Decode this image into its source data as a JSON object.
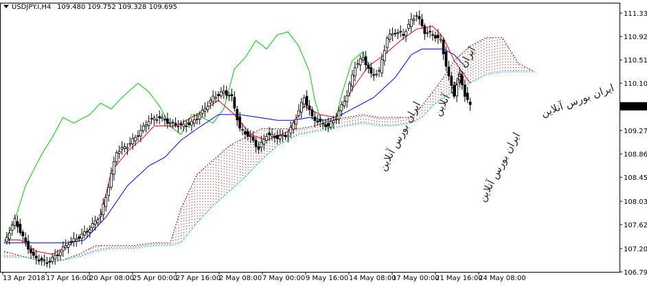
{
  "chart_title": {
    "symbol": "USDJPY.I,H4",
    "ohlc": "109.480 109.752 109.328 109.695"
  },
  "colors": {
    "background": "#ffffff",
    "axis": "#000000",
    "candle_bull": "#ffffff",
    "candle_bear": "#000000",
    "tenkan": "#ff0000",
    "kijun": "#0000ff",
    "chikou": "#00cc00",
    "senkou_a": "#8b0000",
    "senkou_b": "#00bfff",
    "current_price_bg": "#000000",
    "current_price_fg": "#ffffff"
  },
  "chart_data": {
    "type": "candlestick",
    "indicator": "ichimoku",
    "ylim": [
      106.79,
      111.5
    ],
    "y_ticks": [
      "111.330",
      "110.920",
      "110.510",
      "110.100",
      "109.695",
      "109.270",
      "108.860",
      "108.450",
      "108.030",
      "107.620",
      "107.200",
      "106.790"
    ],
    "current_price": "109.695",
    "x_ticks": [
      "13 Apr 2018",
      "17 Apr 16:00",
      "20 Apr 08:00",
      "25 Apr 00:00",
      "27 Apr 16:00",
      "2 May 08:00",
      "7 May 00:00",
      "9 May 16:00",
      "14 May 08:00",
      "17 May 00:00",
      "21 May 16:00",
      "24 May 08:00"
    ],
    "watermarks": [
      "ایران بورس آنلاین",
      "ایران بورس آنلاین",
      "ایران بورس آنلاین",
      "ایران بورس آنلاین"
    ],
    "price_anchors": [
      [
        0,
        107.3
      ],
      [
        4,
        107.7
      ],
      [
        8,
        107.3
      ],
      [
        11,
        107.05
      ],
      [
        16,
        106.95
      ],
      [
        20,
        107.1
      ],
      [
        24,
        107.3
      ],
      [
        28,
        107.4
      ],
      [
        32,
        107.55
      ],
      [
        36,
        107.8
      ],
      [
        38,
        108.1
      ],
      [
        42,
        108.9
      ],
      [
        46,
        109.0
      ],
      [
        50,
        109.2
      ],
      [
        54,
        109.45
      ],
      [
        58,
        109.5
      ],
      [
        62,
        109.4
      ],
      [
        66,
        109.35
      ],
      [
        70,
        109.4
      ],
      [
        74,
        109.6
      ],
      [
        78,
        109.85
      ],
      [
        82,
        109.95
      ],
      [
        85,
        109.85
      ],
      [
        88,
        109.3
      ],
      [
        92,
        109.15
      ],
      [
        95,
        108.95
      ],
      [
        98,
        109.2
      ],
      [
        102,
        109.15
      ],
      [
        106,
        109.2
      ],
      [
        109,
        109.5
      ],
      [
        112,
        109.85
      ],
      [
        115,
        109.5
      ],
      [
        118,
        109.4
      ],
      [
        121,
        109.35
      ],
      [
        124,
        109.5
      ],
      [
        128,
        109.9
      ],
      [
        131,
        110.4
      ],
      [
        134,
        110.55
      ],
      [
        137,
        110.25
      ],
      [
        140,
        110.3
      ],
      [
        143,
        110.9
      ],
      [
        146,
        111.0
      ],
      [
        149,
        110.95
      ],
      [
        152,
        111.2
      ],
      [
        154,
        111.3
      ],
      [
        157,
        111.0
      ],
      [
        160,
        110.95
      ],
      [
        163,
        110.85
      ],
      [
        166,
        110.2
      ],
      [
        168,
        109.9
      ],
      [
        170,
        110.25
      ],
      [
        172,
        109.9
      ],
      [
        174,
        109.7
      ]
    ],
    "tenkan_anchors": [
      [
        0,
        107.35
      ],
      [
        6,
        107.35
      ],
      [
        12,
        107.15
      ],
      [
        18,
        107.1
      ],
      [
        24,
        107.25
      ],
      [
        30,
        107.45
      ],
      [
        36,
        107.75
      ],
      [
        40,
        108.55
      ],
      [
        46,
        108.9
      ],
      [
        52,
        109.15
      ],
      [
        56,
        109.35
      ],
      [
        64,
        109.35
      ],
      [
        72,
        109.55
      ],
      [
        80,
        109.8
      ],
      [
        86,
        109.55
      ],
      [
        92,
        109.2
      ],
      [
        98,
        109.1
      ],
      [
        106,
        109.25
      ],
      [
        112,
        109.7
      ],
      [
        118,
        109.55
      ],
      [
        124,
        109.5
      ],
      [
        130,
        110.0
      ],
      [
        136,
        110.4
      ],
      [
        142,
        110.6
      ],
      [
        148,
        110.85
      ],
      [
        154,
        111.05
      ],
      [
        160,
        111.1
      ],
      [
        164,
        110.9
      ],
      [
        168,
        110.5
      ],
      [
        174,
        110.1
      ]
    ],
    "kijun_anchors": [
      [
        0,
        107.3
      ],
      [
        12,
        107.3
      ],
      [
        24,
        107.3
      ],
      [
        30,
        107.35
      ],
      [
        38,
        107.75
      ],
      [
        46,
        108.3
      ],
      [
        54,
        108.65
      ],
      [
        60,
        108.8
      ],
      [
        66,
        109.1
      ],
      [
        72,
        109.3
      ],
      [
        80,
        109.55
      ],
      [
        88,
        109.55
      ],
      [
        102,
        109.45
      ],
      [
        108,
        109.45
      ],
      [
        114,
        109.5
      ],
      [
        120,
        109.45
      ],
      [
        126,
        109.55
      ],
      [
        132,
        109.7
      ],
      [
        138,
        109.85
      ],
      [
        146,
        110.2
      ],
      [
        152,
        110.6
      ],
      [
        156,
        110.7
      ],
      [
        164,
        110.7
      ],
      [
        168,
        110.6
      ],
      [
        172,
        110.4
      ]
    ],
    "chikou_anchors": [
      [
        0,
        107.3
      ],
      [
        4,
        107.7
      ],
      [
        8,
        108.3
      ],
      [
        14,
        108.85
      ],
      [
        18,
        109.15
      ],
      [
        22,
        109.5
      ],
      [
        26,
        109.4
      ],
      [
        32,
        109.55
      ],
      [
        36,
        109.75
      ],
      [
        40,
        109.65
      ],
      [
        44,
        109.85
      ],
      [
        50,
        110.1
      ],
      [
        54,
        109.95
      ],
      [
        58,
        109.7
      ],
      [
        62,
        109.35
      ],
      [
        66,
        109.2
      ],
      [
        70,
        109.55
      ],
      [
        74,
        109.5
      ],
      [
        78,
        109.4
      ],
      [
        82,
        109.65
      ],
      [
        86,
        110.35
      ],
      [
        90,
        110.55
      ],
      [
        94,
        110.85
      ],
      [
        98,
        110.7
      ],
      [
        102,
        110.95
      ],
      [
        106,
        111.0
      ],
      [
        110,
        110.75
      ],
      [
        114,
        110.3
      ],
      [
        116,
        109.8
      ],
      [
        118,
        109.5
      ],
      [
        121,
        109.3
      ],
      [
        124,
        109.5
      ],
      [
        126,
        109.9
      ],
      [
        130,
        110.5
      ],
      [
        134,
        110.65
      ],
      [
        138,
        110.2
      ]
    ],
    "span_a_anchors": [
      [
        0,
        107.15
      ],
      [
        8,
        107.05
      ],
      [
        16,
        106.95
      ],
      [
        22,
        107.0
      ],
      [
        28,
        107.1
      ],
      [
        34,
        107.25
      ],
      [
        40,
        107.25
      ],
      [
        48,
        107.25
      ],
      [
        56,
        107.3
      ],
      [
        62,
        107.3
      ],
      [
        66,
        107.9
      ],
      [
        72,
        108.5
      ],
      [
        78,
        108.75
      ],
      [
        84,
        109.0
      ],
      [
        90,
        109.15
      ],
      [
        96,
        109.3
      ],
      [
        102,
        109.3
      ],
      [
        110,
        109.3
      ],
      [
        116,
        109.35
      ],
      [
        122,
        109.45
      ],
      [
        128,
        109.5
      ],
      [
        134,
        109.55
      ],
      [
        140,
        109.5
      ],
      [
        146,
        109.5
      ],
      [
        152,
        109.5
      ],
      [
        156,
        109.7
      ],
      [
        160,
        109.95
      ],
      [
        164,
        110.2
      ],
      [
        168,
        110.5
      ],
      [
        174,
        110.75
      ],
      [
        180,
        110.9
      ],
      [
        186,
        110.9
      ],
      [
        192,
        110.45
      ],
      [
        198,
        110.3
      ]
    ],
    "span_b_anchors": [
      [
        0,
        107.05
      ],
      [
        8,
        107.05
      ],
      [
        16,
        106.95
      ],
      [
        22,
        107.0
      ],
      [
        28,
        107.05
      ],
      [
        34,
        107.15
      ],
      [
        40,
        107.2
      ],
      [
        48,
        107.2
      ],
      [
        56,
        107.25
      ],
      [
        62,
        107.25
      ],
      [
        66,
        107.3
      ],
      [
        72,
        107.65
      ],
      [
        78,
        107.95
      ],
      [
        84,
        108.2
      ],
      [
        90,
        108.45
      ],
      [
        96,
        108.75
      ],
      [
        102,
        109.0
      ],
      [
        110,
        109.2
      ],
      [
        116,
        109.25
      ],
      [
        122,
        109.3
      ],
      [
        128,
        109.35
      ],
      [
        134,
        109.4
      ],
      [
        140,
        109.35
      ],
      [
        146,
        109.35
      ],
      [
        152,
        109.4
      ],
      [
        156,
        109.5
      ],
      [
        160,
        109.7
      ],
      [
        164,
        109.85
      ],
      [
        168,
        109.95
      ],
      [
        174,
        110.1
      ],
      [
        180,
        110.25
      ],
      [
        186,
        110.3
      ],
      [
        192,
        110.3
      ],
      [
        198,
        110.3
      ]
    ]
  }
}
